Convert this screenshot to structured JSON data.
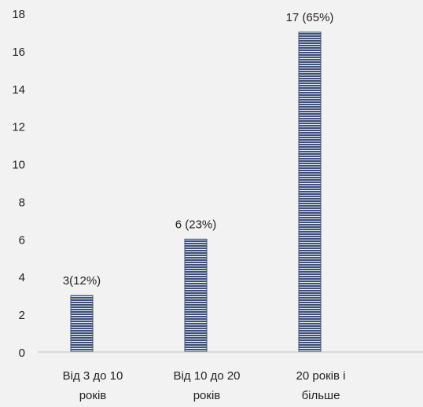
{
  "chart_data": {
    "type": "bar",
    "categories": [
      [
        "Від 3 до 10",
        "років"
      ],
      [
        "Від 10 до 20",
        "років"
      ],
      [
        "20 років і",
        "більше"
      ]
    ],
    "values": [
      3,
      6,
      17
    ],
    "data_labels": [
      "3(12%)",
      "6 (23%)",
      "17 (65%)"
    ],
    "ylim": [
      0,
      18
    ],
    "yticks": [
      0,
      2,
      4,
      6,
      8,
      10,
      12,
      14,
      16,
      18
    ],
    "title": "",
    "xlabel": "",
    "ylabel": "",
    "grid": false,
    "legend": "none",
    "bar_fill": "#3d4e78",
    "bar_stripe": "#e6e9f2",
    "axis_color": "#bfbfbf"
  }
}
